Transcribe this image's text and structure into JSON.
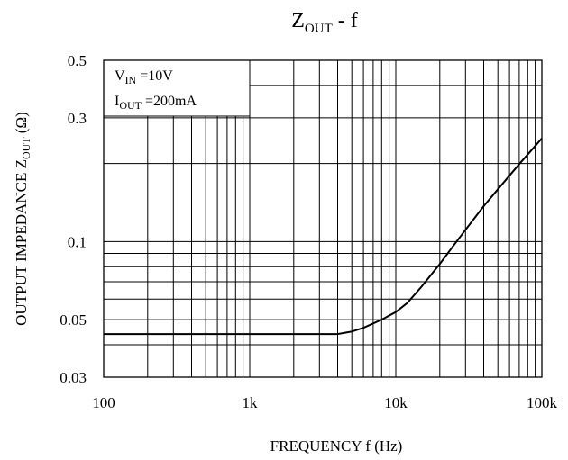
{
  "chart_data": {
    "type": "line",
    "title": {
      "main": "Z",
      "sub": "OUT",
      "suffix": " -  f"
    },
    "xlabel": "FREQUENCY  f  (Hz)",
    "ylabel": {
      "main": "OUTPUT IMPEDANCE Z",
      "sub": "OUT",
      "unit": "  (Ω)"
    },
    "x_scale": "log",
    "y_scale": "log",
    "xlim": [
      100,
      100000
    ],
    "ylim": [
      0.03,
      0.5
    ],
    "x_ticks": [
      {
        "value": 100,
        "label": "100"
      },
      {
        "value": 1000,
        "label": "1k"
      },
      {
        "value": 10000,
        "label": "10k"
      },
      {
        "value": 100000,
        "label": "100k"
      }
    ],
    "y_ticks": [
      {
        "value": 0.5,
        "label": "0.5"
      },
      {
        "value": 0.3,
        "label": "0.3"
      },
      {
        "value": 0.1,
        "label": "0.1"
      },
      {
        "value": 0.05,
        "label": "0.05"
      },
      {
        "value": 0.03,
        "label": "0.03"
      }
    ],
    "grid": true,
    "conditions": [
      {
        "main": "V",
        "sub": "IN",
        "value": " =10V"
      },
      {
        "main": "I",
        "sub": "OUT",
        "value": " =200mA"
      }
    ],
    "series": [
      {
        "x": [
          100,
          500,
          1000,
          2000,
          3000,
          4000,
          5000,
          6000,
          8000,
          10000,
          12000,
          15000,
          20000,
          25000,
          30000,
          40000,
          50000,
          70000,
          100000
        ],
        "y": [
          0.044,
          0.044,
          0.044,
          0.044,
          0.044,
          0.044,
          0.045,
          0.0465,
          0.05,
          0.0535,
          0.058,
          0.067,
          0.082,
          0.097,
          0.111,
          0.137,
          0.159,
          0.199,
          0.25
        ]
      }
    ]
  }
}
